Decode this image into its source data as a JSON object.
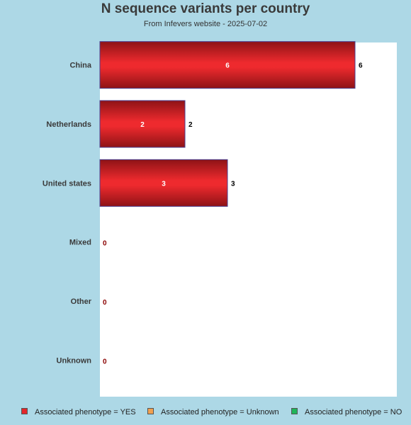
{
  "chart_data": {
    "type": "bar",
    "orientation": "horizontal",
    "title": "N sequence variants per country",
    "subtitle": "From Infevers website - 2025-07-02",
    "categories": [
      "China",
      "Netherlands",
      "United states",
      "Mixed",
      "Other",
      "Unknown"
    ],
    "series": [
      {
        "name": "Associated phenotype = YES",
        "values": [
          6,
          2,
          3,
          0,
          0,
          0
        ],
        "color": "#e3262a"
      },
      {
        "name": "Associated phenotype = Unknown",
        "values": [
          0,
          0,
          0,
          0,
          0,
          0
        ],
        "color": "#f0a050"
      },
      {
        "name": "Associated phenotype = NO",
        "values": [
          0,
          0,
          0,
          0,
          0,
          0
        ],
        "color": "#1fb55a"
      }
    ],
    "totals": [
      6,
      2,
      3,
      0,
      0,
      0
    ],
    "xlim": [
      0,
      7
    ],
    "grid": false,
    "legend": "bottom"
  }
}
